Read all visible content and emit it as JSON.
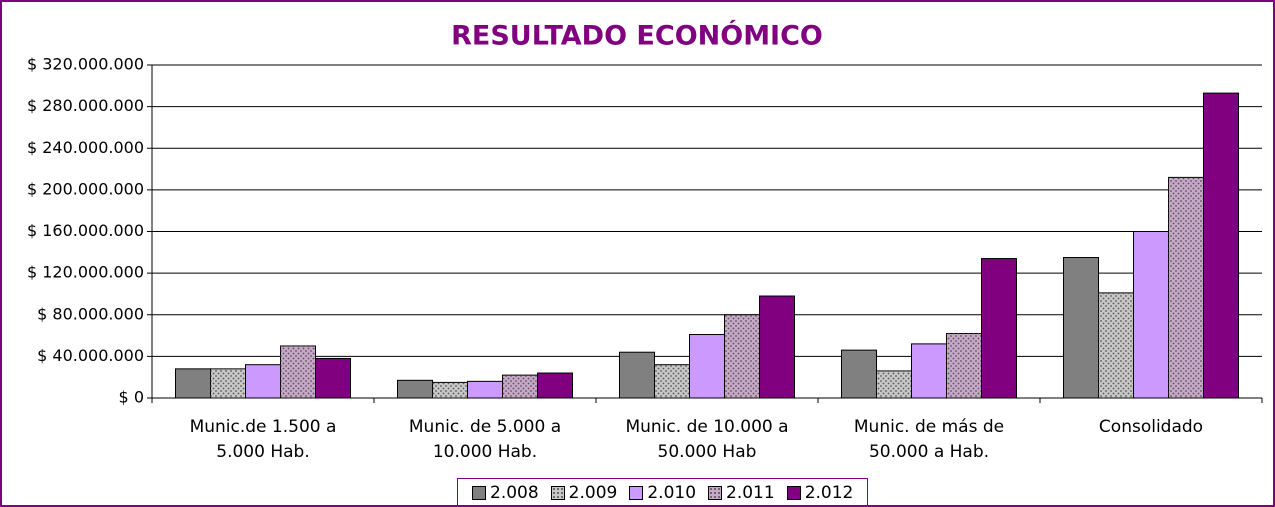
{
  "chart_data": {
    "type": "bar",
    "title": "RESULTADO ECONÓMICO",
    "categories": [
      "Munic.de 1.500 a 5.000 Hab.",
      "Munic. de 5.000 a 10.000 Hab.",
      "Munic. de 10.000 a 50.000 Hab",
      "Munic. de más de 50.000 a Hab.",
      "Consolidado"
    ],
    "series": [
      {
        "name": "2.008",
        "color": "#808080",
        "values": [
          28000000,
          17000000,
          44000000,
          46000000,
          135000000
        ]
      },
      {
        "name": "2.009",
        "color": "#c8c8c8",
        "dotted": true,
        "values": [
          28000000,
          15000000,
          32000000,
          26000000,
          101000000
        ]
      },
      {
        "name": "2.010",
        "color": "#cc99ff",
        "values": [
          32000000,
          16000000,
          61000000,
          52000000,
          160000000
        ]
      },
      {
        "name": "2.011",
        "color": "#c8a8c8",
        "dotted": true,
        "values": [
          50000000,
          22000000,
          80000000,
          62000000,
          212000000
        ]
      },
      {
        "name": "2.012",
        "color": "#800080",
        "values": [
          38000000,
          24000000,
          98000000,
          134000000,
          293000000
        ]
      }
    ],
    "ylim": [
      0,
      320000000
    ],
    "yticks": [
      {
        "value": 0,
        "label": "$ 0"
      },
      {
        "value": 40000000,
        "label": "$ 40.000.000"
      },
      {
        "value": 80000000,
        "label": "$ 80.000.000"
      },
      {
        "value": 120000000,
        "label": "$ 120.000.000"
      },
      {
        "value": 160000000,
        "label": "$ 160.000.000"
      },
      {
        "value": 200000000,
        "label": "$ 200.000.000"
      },
      {
        "value": 240000000,
        "label": "$ 240.000.000"
      },
      {
        "value": 280000000,
        "label": "$ 280.000.000"
      },
      {
        "value": 320000000,
        "label": "$ 320.000.000"
      }
    ],
    "grid": true,
    "legend": "bottom"
  }
}
